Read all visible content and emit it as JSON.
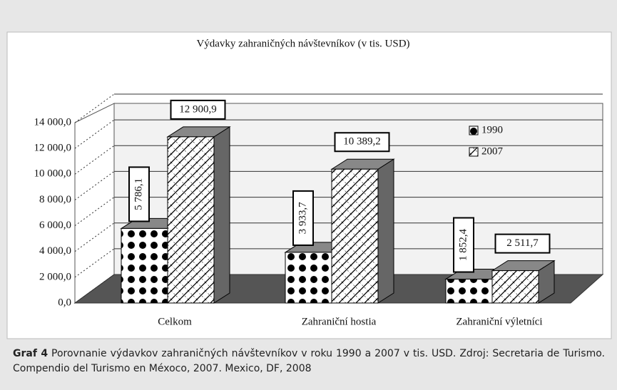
{
  "chart_data": {
    "type": "bar3d",
    "title": "Výdavky zahraničných návštevníkov (v tis. USD)",
    "categories": [
      "Celkom",
      "Zahraniční hostia",
      "Zahraniční výletníci"
    ],
    "series": [
      {
        "name": "1990",
        "pattern": "dots",
        "values": [
          5786.1,
          3933.7,
          1852.4
        ],
        "value_labels": [
          "5 786,1",
          "3 933,7",
          "1 852,4"
        ]
      },
      {
        "name": "2007",
        "pattern": "hatch",
        "values": [
          12900.9,
          10389.2,
          2511.7
        ],
        "value_labels": [
          "12 900,9",
          "10 389,2",
          "2 511,7"
        ]
      }
    ],
    "ylim": [
      0,
      14000
    ],
    "yticks": [
      {
        "value": 0,
        "label": "0,0"
      },
      {
        "value": 2000,
        "label": "2 000,0"
      },
      {
        "value": 4000,
        "label": "4 000,0"
      },
      {
        "value": 6000,
        "label": "6 000,0"
      },
      {
        "value": 8000,
        "label": "8 000,0"
      },
      {
        "value": 10000,
        "label": "10 000,0"
      },
      {
        "value": 12000,
        "label": "12 000,0"
      },
      {
        "value": 14000,
        "label": "14 000,0"
      }
    ],
    "grid": true,
    "legend": "upper right"
  },
  "caption": {
    "label": "Graf 4",
    "text": "Porovnanie výdavkov zahraničných návštevníkov v roku 1990 a 2007 v tis. USD. Zdroj: Secretaria de Turismo. Compendio del Turismo en Méxoco, 2007. Mexico, DF, 2008"
  }
}
